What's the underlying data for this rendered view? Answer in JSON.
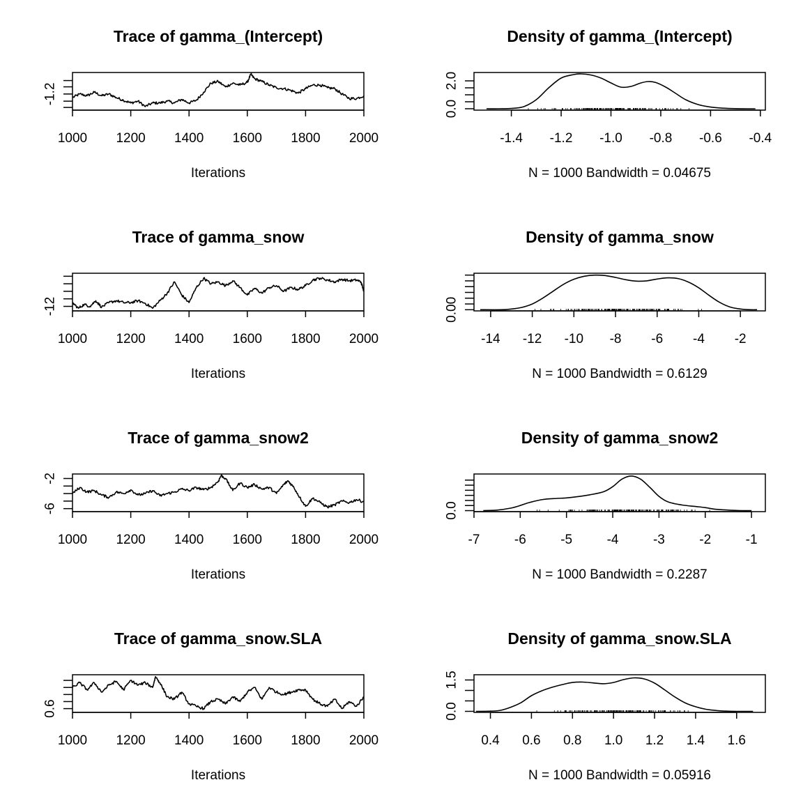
{
  "chart_data": [
    {
      "type": "line",
      "title": "Trace of gamma_(Intercept)",
      "xlabel": "Iterations",
      "ylabel": "",
      "xlim": [
        1000,
        2000
      ],
      "ylim": [
        -1.38,
        -0.96
      ],
      "x_ticks": [
        "1000",
        "1200",
        "1400",
        "1600",
        "1800",
        "2000"
      ],
      "y_ticks": [
        {
          "value": -1.35,
          "label": ""
        },
        {
          "value": -1.28,
          "label": ""
        },
        {
          "value": -1.2,
          "label": "-1.2"
        },
        {
          "value": -1.12,
          "label": ""
        },
        {
          "value": -1.05,
          "label": ""
        }
      ],
      "series": [
        {
          "x": [
            1000,
            1025,
            1050,
            1075,
            1100,
            1125,
            1150,
            1175,
            1200,
            1225,
            1250,
            1275,
            1300,
            1325,
            1350,
            1375,
            1400,
            1425,
            1450,
            1475,
            1500,
            1525,
            1550,
            1575,
            1600,
            1612,
            1625,
            1650,
            1675,
            1700,
            1725,
            1750,
            1775,
            1800,
            1825,
            1850,
            1875,
            1900,
            1925,
            1950,
            1975,
            2000
          ],
          "y": [
            -1.24,
            -1.2,
            -1.22,
            -1.18,
            -1.22,
            -1.2,
            -1.24,
            -1.27,
            -1.3,
            -1.28,
            -1.34,
            -1.3,
            -1.3,
            -1.28,
            -1.3,
            -1.26,
            -1.3,
            -1.27,
            -1.18,
            -1.08,
            -1.06,
            -1.12,
            -1.08,
            -1.1,
            -1.07,
            -0.98,
            -1.03,
            -1.06,
            -1.1,
            -1.13,
            -1.14,
            -1.16,
            -1.19,
            -1.14,
            -1.1,
            -1.1,
            -1.13,
            -1.14,
            -1.2,
            -1.25,
            -1.25,
            -1.22
          ]
        }
      ]
    },
    {
      "type": "area",
      "title": "Density of gamma_(Intercept)",
      "xlabel": "N = 1000   Bandwidth = 0.04675",
      "ylabel": "",
      "xlim": [
        -1.55,
        -0.38
      ],
      "ylim": [
        -0.1,
        2.6
      ],
      "x_ticks": [
        "-1.4",
        "-1.2",
        "-1.0",
        "-0.8",
        "-0.6",
        "-0.4"
      ],
      "y_ticks": [
        {
          "value": 0.0,
          "label": "0.0"
        },
        {
          "value": 0.5,
          "label": ""
        },
        {
          "value": 1.0,
          "label": ""
        },
        {
          "value": 1.5,
          "label": ""
        },
        {
          "value": 2.0,
          "label": "2.0"
        }
      ],
      "rug_range": [
        -1.35,
        -0.65
      ],
      "series": [
        {
          "x": [
            -1.5,
            -1.45,
            -1.4,
            -1.35,
            -1.3,
            -1.25,
            -1.2,
            -1.15,
            -1.12,
            -1.08,
            -1.04,
            -1.0,
            -0.96,
            -0.92,
            -0.88,
            -0.85,
            -0.82,
            -0.78,
            -0.74,
            -0.7,
            -0.65,
            -0.6,
            -0.55,
            -0.5,
            -0.45,
            -0.42
          ],
          "y": [
            0.0,
            0.0,
            0.02,
            0.15,
            0.65,
            1.5,
            2.2,
            2.45,
            2.5,
            2.42,
            2.2,
            1.85,
            1.55,
            1.6,
            1.85,
            1.95,
            1.88,
            1.55,
            1.1,
            0.65,
            0.3,
            0.12,
            0.04,
            0.01,
            0.0,
            0.0
          ]
        }
      ]
    },
    {
      "type": "line",
      "title": "Trace of gamma_snow",
      "xlabel": "Iterations",
      "ylabel": "",
      "xlim": [
        1000,
        2000
      ],
      "ylim": [
        -13.2,
        -3.2
      ],
      "x_ticks": [
        "1000",
        "1200",
        "1400",
        "1600",
        "1800",
        "2000"
      ],
      "y_ticks": [
        {
          "value": -12,
          "label": "-12"
        },
        {
          "value": -10,
          "label": ""
        },
        {
          "value": -8,
          "label": ""
        },
        {
          "value": -6,
          "label": ""
        },
        {
          "value": -4,
          "label": ""
        }
      ],
      "series": [
        {
          "x": [
            1000,
            1020,
            1040,
            1060,
            1080,
            1100,
            1125,
            1150,
            1175,
            1200,
            1225,
            1250,
            1275,
            1300,
            1325,
            1350,
            1375,
            1400,
            1425,
            1450,
            1475,
            1500,
            1525,
            1550,
            1575,
            1600,
            1625,
            1650,
            1675,
            1700,
            1725,
            1750,
            1775,
            1800,
            1825,
            1850,
            1875,
            1900,
            1925,
            1950,
            1975,
            1990,
            2000
          ],
          "y": [
            -11,
            -12.5,
            -11.5,
            -12,
            -10.5,
            -12.2,
            -11,
            -10.5,
            -11,
            -11,
            -10.5,
            -11.2,
            -12.5,
            -10.5,
            -8.5,
            -5.5,
            -9,
            -11,
            -7,
            -4.5,
            -6,
            -5.5,
            -6.5,
            -5.2,
            -7,
            -9,
            -7.2,
            -8.5,
            -7,
            -6.5,
            -8,
            -7,
            -7.5,
            -6.5,
            -5,
            -4.5,
            -5,
            -5.5,
            -4.8,
            -5.2,
            -5,
            -5.5,
            -8
          ]
        }
      ]
    },
    {
      "type": "area",
      "title": "Density of gamma_snow",
      "xlabel": "N = 1000   Bandwidth = 0.6129",
      "ylabel": "",
      "xlim": [
        -14.8,
        -0.8
      ],
      "ylim": [
        -0.005,
        0.158
      ],
      "x_ticks": [
        "-14",
        "-12",
        "-10",
        "-8",
        "-6",
        "-4",
        "-2"
      ],
      "y_ticks": [
        {
          "value": 0.0,
          "label": "0.00"
        },
        {
          "value": 0.025,
          "label": ""
        },
        {
          "value": 0.05,
          "label": ""
        },
        {
          "value": 0.075,
          "label": ""
        },
        {
          "value": 0.1,
          "label": ""
        },
        {
          "value": 0.125,
          "label": ""
        },
        {
          "value": 0.15,
          "label": ""
        }
      ],
      "rug_range": [
        -12.5,
        -3.0
      ],
      "series": [
        {
          "x": [
            -14.5,
            -13.5,
            -13,
            -12.5,
            -12,
            -11.5,
            -11,
            -10.5,
            -10,
            -9.5,
            -9,
            -8.5,
            -8,
            -7.5,
            -7,
            -6.5,
            -6,
            -5.5,
            -5,
            -4.5,
            -4,
            -3.5,
            -3,
            -2.5,
            -2,
            -1.5,
            -1.2
          ],
          "y": [
            0.0,
            0.0,
            0.003,
            0.01,
            0.025,
            0.05,
            0.08,
            0.11,
            0.132,
            0.145,
            0.15,
            0.148,
            0.14,
            0.13,
            0.124,
            0.125,
            0.133,
            0.138,
            0.135,
            0.12,
            0.095,
            0.062,
            0.032,
            0.012,
            0.003,
            0.0,
            0.0
          ]
        }
      ]
    },
    {
      "type": "line",
      "title": "Trace of gamma_snow2",
      "xlabel": "Iterations",
      "ylabel": "",
      "xlim": [
        1000,
        2000
      ],
      "ylim": [
        -6.4,
        -1.4
      ],
      "x_ticks": [
        "1000",
        "1200",
        "1400",
        "1600",
        "1800",
        "2000"
      ],
      "y_ticks": [
        {
          "value": -6,
          "label": "-6"
        },
        {
          "value": -5,
          "label": ""
        },
        {
          "value": -4,
          "label": ""
        },
        {
          "value": -3,
          "label": ""
        },
        {
          "value": -2,
          "label": "-2"
        }
      ],
      "series": [
        {
          "x": [
            1000,
            1025,
            1050,
            1075,
            1100,
            1125,
            1150,
            1175,
            1200,
            1225,
            1250,
            1275,
            1300,
            1325,
            1350,
            1375,
            1400,
            1425,
            1450,
            1475,
            1500,
            1510,
            1525,
            1550,
            1575,
            1600,
            1625,
            1650,
            1675,
            1700,
            1725,
            1740,
            1760,
            1780,
            1800,
            1825,
            1850,
            1875,
            1900,
            1925,
            1950,
            1975,
            2000
          ],
          "y": [
            -4,
            -3.2,
            -3.8,
            -3.6,
            -4.2,
            -4.5,
            -3.8,
            -4,
            -3.5,
            -4.2,
            -4,
            -3.6,
            -4.3,
            -4,
            -3.8,
            -3.4,
            -3.6,
            -3.2,
            -3.5,
            -3.2,
            -2.4,
            -1.6,
            -2,
            -3.6,
            -2.6,
            -3.2,
            -2.8,
            -3.4,
            -3.2,
            -4,
            -2.8,
            -2.3,
            -3.2,
            -4.5,
            -5.7,
            -4.6,
            -5.2,
            -5.8,
            -5.5,
            -5,
            -5.2,
            -4.8,
            -5.1
          ]
        }
      ]
    },
    {
      "type": "area",
      "title": "Density of gamma_snow2",
      "xlabel": "N = 1000   Bandwidth = 0.2287",
      "ylabel": "",
      "xlim": [
        -7.0,
        -0.7
      ],
      "ylim": [
        -0.02,
        0.72
      ],
      "x_ticks": [
        "-7",
        "-6",
        "-5",
        "-4",
        "-3",
        "-2",
        "-1"
      ],
      "y_ticks": [
        {
          "value": 0.0,
          "label": "0.0"
        },
        {
          "value": 0.1,
          "label": ""
        },
        {
          "value": 0.2,
          "label": ""
        },
        {
          "value": 0.3,
          "label": ""
        },
        {
          "value": 0.4,
          "label": ""
        },
        {
          "value": 0.5,
          "label": ""
        },
        {
          "value": 0.6,
          "label": ""
        }
      ],
      "rug_range": [
        -6.0,
        -1.6
      ],
      "series": [
        {
          "x": [
            -6.8,
            -6.5,
            -6.2,
            -6.0,
            -5.8,
            -5.5,
            -5.2,
            -5.0,
            -4.8,
            -4.5,
            -4.2,
            -4.0,
            -3.8,
            -3.6,
            -3.4,
            -3.2,
            -3.0,
            -2.8,
            -2.5,
            -2.2,
            -2.0,
            -1.8,
            -1.5,
            -1.2,
            -1.0
          ],
          "y": [
            0.0,
            0.01,
            0.05,
            0.1,
            0.16,
            0.22,
            0.24,
            0.25,
            0.27,
            0.31,
            0.37,
            0.47,
            0.62,
            0.68,
            0.62,
            0.46,
            0.28,
            0.17,
            0.11,
            0.08,
            0.06,
            0.03,
            0.01,
            0.0,
            0.0
          ]
        }
      ]
    },
    {
      "type": "line",
      "title": "Trace of gamma_snow.SLA",
      "xlabel": "Iterations",
      "ylabel": "",
      "xlim": [
        1000,
        2000
      ],
      "ylim": [
        0.52,
        1.32
      ],
      "x_ticks": [
        "1000",
        "1200",
        "1400",
        "1600",
        "1800",
        "2000"
      ],
      "y_ticks": [
        {
          "value": 0.6,
          "label": "0.6"
        },
        {
          "value": 0.75,
          "label": ""
        },
        {
          "value": 0.9,
          "label": ""
        },
        {
          "value": 1.05,
          "label": ""
        },
        {
          "value": 1.2,
          "label": ""
        }
      ],
      "series": [
        {
          "x": [
            1000,
            1025,
            1050,
            1075,
            1100,
            1125,
            1150,
            1175,
            1200,
            1225,
            1250,
            1275,
            1285,
            1300,
            1325,
            1350,
            1375,
            1400,
            1425,
            1450,
            1475,
            1500,
            1525,
            1550,
            1575,
            1600,
            1625,
            1650,
            1675,
            1700,
            1725,
            1750,
            1775,
            1800,
            1825,
            1850,
            1875,
            1900,
            1925,
            1950,
            1975,
            2000
          ],
          "y": [
            1.05,
            1.15,
            1.0,
            1.15,
            0.95,
            1.1,
            1.18,
            1.0,
            1.2,
            1.1,
            1.15,
            1.05,
            1.28,
            1.15,
            0.85,
            0.8,
            0.95,
            0.7,
            0.65,
            0.6,
            0.75,
            0.8,
            0.7,
            0.85,
            0.75,
            0.95,
            1.05,
            0.8,
            1.05,
            0.95,
            0.9,
            0.95,
            1.0,
            1.0,
            0.8,
            0.7,
            0.65,
            0.8,
            0.6,
            0.75,
            0.65,
            0.85
          ]
        }
      ]
    },
    {
      "type": "area",
      "title": "Density of gamma_snow.SLA",
      "xlabel": "N = 1000   Bandwidth = 0.05916",
      "ylabel": "",
      "xlim": [
        0.32,
        1.74
      ],
      "ylim": [
        -0.05,
        1.75
      ],
      "x_ticks": [
        "0.4",
        "0.6",
        "0.8",
        "1.0",
        "1.2",
        "1.4",
        "1.6"
      ],
      "y_ticks": [
        {
          "value": 0.0,
          "label": "0.0"
        },
        {
          "value": 0.5,
          "label": ""
        },
        {
          "value": 1.0,
          "label": ""
        },
        {
          "value": 1.5,
          "label": "1.5"
        }
      ],
      "rug_range": [
        0.55,
        1.5
      ],
      "series": [
        {
          "x": [
            0.33,
            0.4,
            0.45,
            0.5,
            0.55,
            0.6,
            0.65,
            0.7,
            0.75,
            0.8,
            0.85,
            0.9,
            0.95,
            1.0,
            1.05,
            1.1,
            1.15,
            1.2,
            1.25,
            1.3,
            1.35,
            1.4,
            1.45,
            1.5,
            1.55,
            1.6,
            1.68
          ],
          "y": [
            0.0,
            0.01,
            0.05,
            0.2,
            0.42,
            0.75,
            0.98,
            1.15,
            1.28,
            1.38,
            1.4,
            1.36,
            1.32,
            1.38,
            1.52,
            1.6,
            1.55,
            1.35,
            1.02,
            0.68,
            0.4,
            0.22,
            0.1,
            0.04,
            0.01,
            0.0,
            0.0
          ]
        }
      ]
    }
  ]
}
